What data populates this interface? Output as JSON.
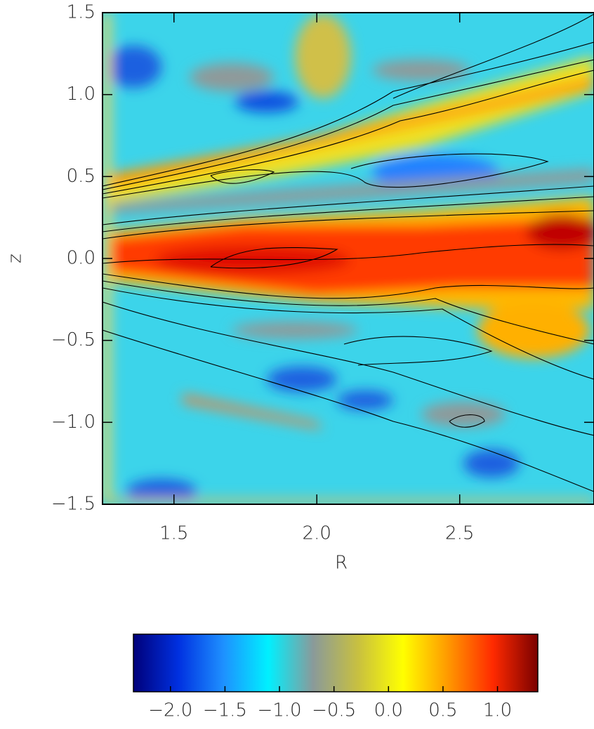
{
  "chart_data": {
    "type": "heatmap",
    "xlabel": "R",
    "ylabel": "z",
    "xlim": [
      1.25,
      2.97
    ],
    "ylim": [
      -1.5,
      1.5
    ],
    "xticks": [
      1.5,
      {
        "value": 2,
        "label": "2.0"
      },
      2.5
    ],
    "yticks": [
      {
        "value": -1.5,
        "label": "−1.5"
      },
      {
        "value": -1,
        "label": "−1.0"
      },
      {
        "value": -0.5,
        "label": "−0.5"
      },
      {
        "value": 0,
        "label": "0.0"
      },
      0.5,
      {
        "value": 1,
        "label": "1.0"
      },
      1.5
    ],
    "colorbar": {
      "lim": [
        -2.34,
        1.37
      ],
      "ticks": [
        {
          "value": -2,
          "label": "−2.0"
        },
        {
          "value": -1.5,
          "label": "−1.5"
        },
        {
          "value": -1,
          "label": "−1.0"
        },
        {
          "value": -0.5,
          "label": "−0.5"
        },
        {
          "value": 0,
          "label": "0.0"
        },
        0.5,
        {
          "value": 1,
          "label": "1.0"
        }
      ],
      "colors": [
        "#00007a",
        "#0030e0",
        "#1e90ff",
        "#00f0ff",
        "#8a9a9a",
        "#c8c040",
        "#ffff00",
        "#ff9900",
        "#ff2a00",
        "#7a0000"
      ]
    }
  }
}
